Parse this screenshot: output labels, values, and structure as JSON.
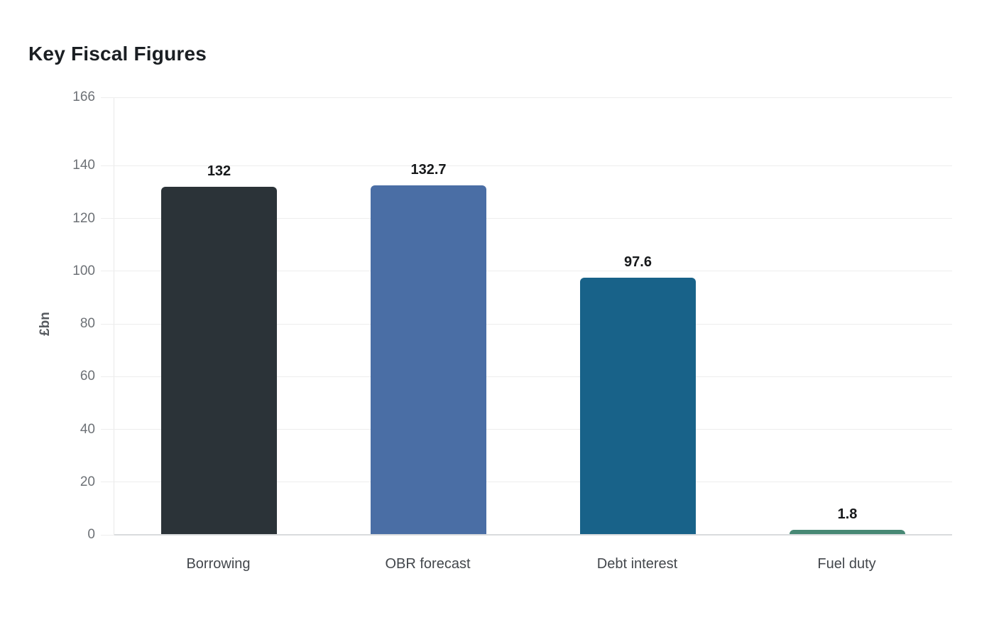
{
  "chart_data": {
    "type": "bar",
    "title": "Key Fiscal Figures",
    "ylabel": "£bn",
    "xlabel": "",
    "categories": [
      "Borrowing",
      "OBR forecast",
      "Debt interest",
      "Fuel duty"
    ],
    "values": [
      132,
      132.7,
      97.6,
      1.8
    ],
    "value_labels": [
      "132",
      "132.7",
      "97.6",
      "1.8"
    ],
    "bar_colors": [
      "#2b3338",
      "#4a6ea5",
      "#186289",
      "#478874"
    ],
    "ylim": [
      0,
      166
    ],
    "yticks": [
      0,
      20,
      40,
      60,
      80,
      100,
      120,
      140,
      166
    ],
    "grid": "horizontal",
    "legend": "none",
    "grid_color": "#ededed",
    "axis_line_color": "#d9dbdd",
    "tick_label_color": "#6d7176",
    "category_label_color": "#43474c",
    "value_label_color": "#17191b",
    "title_color": "#1b1f23"
  }
}
